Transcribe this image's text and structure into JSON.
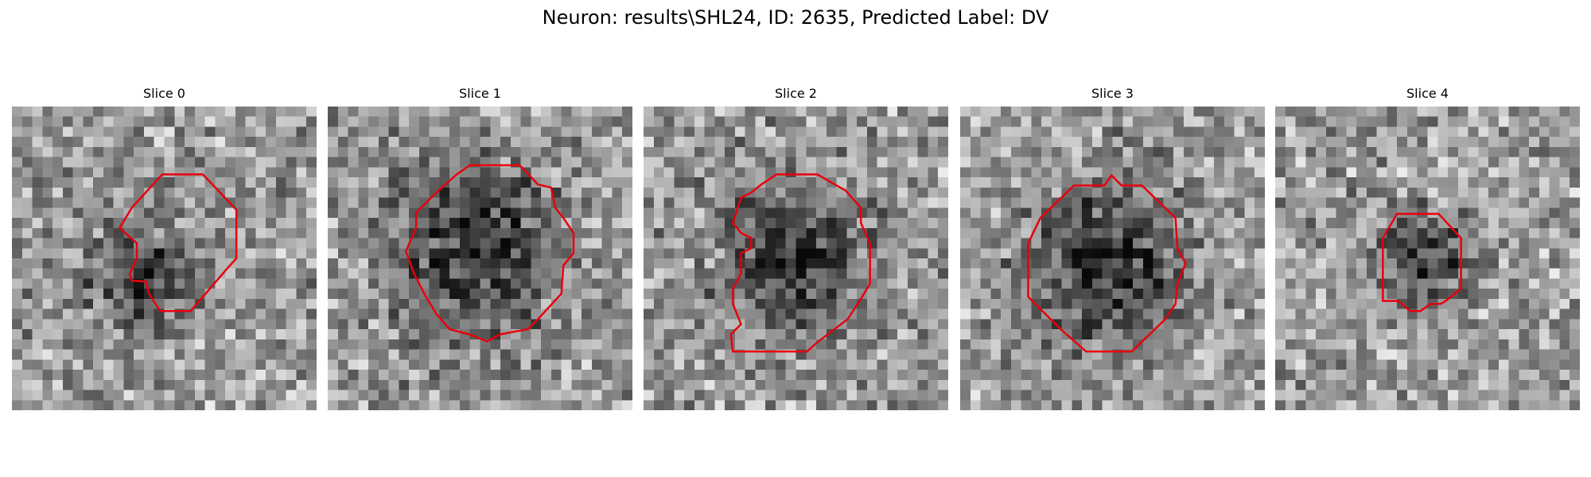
{
  "header": {
    "title": "Neuron: results\\SHL24, ID: 2635, Predicted Label: DV"
  },
  "panels": [
    {
      "title": "Slice 0"
    },
    {
      "title": "Slice 1"
    },
    {
      "title": "Slice 2"
    },
    {
      "title": "Slice 3"
    },
    {
      "title": "Slice 4"
    }
  ]
}
